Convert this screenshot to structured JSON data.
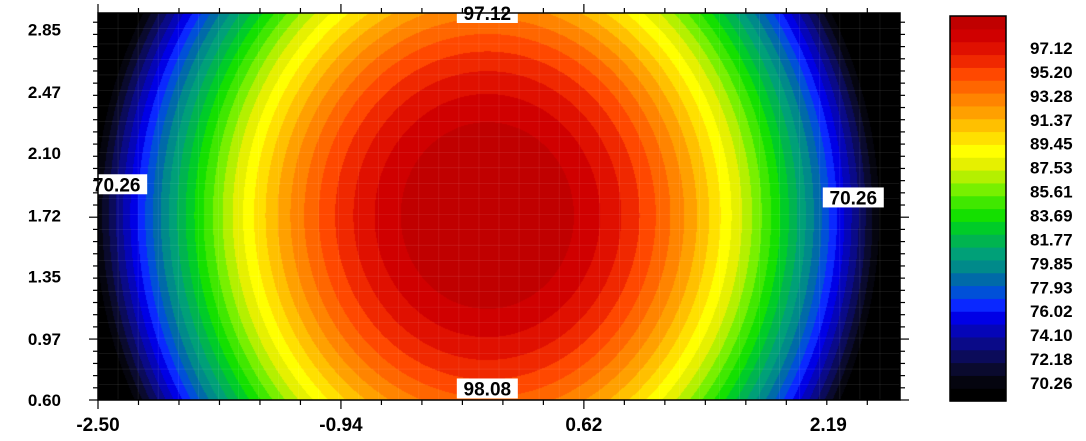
{
  "chart_data": {
    "type": "heatmap",
    "subtype": "filled-contour",
    "title": "",
    "xlabel": "",
    "ylabel": "",
    "xlim": [
      -2.5,
      2.65
    ],
    "ylim": [
      0.6,
      2.95
    ],
    "x_ticks": [
      -2.5,
      -0.94,
      0.62,
      2.19
    ],
    "x_tick_labels": [
      "-2.50",
      "-0.94",
      "0.62",
      "2.19"
    ],
    "y_ticks": [
      0.6,
      0.97,
      1.35,
      1.72,
      2.1,
      2.47,
      2.85
    ],
    "y_tick_labels": [
      "0.60",
      "0.97",
      "1.35",
      "1.72",
      "2.10",
      "2.47",
      "2.85"
    ],
    "surface": {
      "description": "peak centered near x=0, y=1.72; values fall off mainly along x",
      "peak": 98.5,
      "center_x": 0.0,
      "center_y": 1.72,
      "min_value_at_edges": 69.5
    },
    "contour_labels": [
      {
        "text": "97.12",
        "x": 0.0,
        "y": 2.95
      },
      {
        "text": "98.08",
        "x": 0.0,
        "y": 0.67
      },
      {
        "text": "70.26",
        "x": -2.38,
        "y": 1.91
      },
      {
        "text": "70.26",
        "x": 2.35,
        "y": 1.83
      }
    ],
    "colorbar": {
      "labels": [
        "97.12",
        "95.20",
        "93.28",
        "91.37",
        "89.45",
        "87.53",
        "85.61",
        "83.69",
        "81.77",
        "79.85",
        "77.93",
        "76.02",
        "74.10",
        "72.18",
        "70.26"
      ],
      "levels": [
        69.3,
        70.26,
        71.22,
        72.18,
        73.14,
        74.1,
        75.06,
        76.02,
        76.98,
        77.93,
        78.89,
        79.85,
        80.81,
        81.77,
        82.73,
        83.69,
        84.65,
        85.61,
        86.57,
        87.53,
        88.49,
        89.45,
        90.41,
        91.37,
        92.33,
        93.28,
        94.24,
        95.2,
        96.16,
        97.12,
        98.08
      ],
      "colors": [
        "#000000",
        "#05050f",
        "#0a0a2e",
        "#0b0b5a",
        "#0a0a88",
        "#0505b8",
        "#0000e6",
        "#0a28ff",
        "#0050d8",
        "#006aa8",
        "#008a8a",
        "#00a078",
        "#00b450",
        "#00cc28",
        "#14e000",
        "#40e800",
        "#78f000",
        "#b4f000",
        "#e6f000",
        "#ffff00",
        "#ffe000",
        "#ffc000",
        "#ffa000",
        "#ff8400",
        "#ff6600",
        "#ff4800",
        "#f02800",
        "#e01000",
        "#d00000",
        "#c00000"
      ]
    }
  }
}
